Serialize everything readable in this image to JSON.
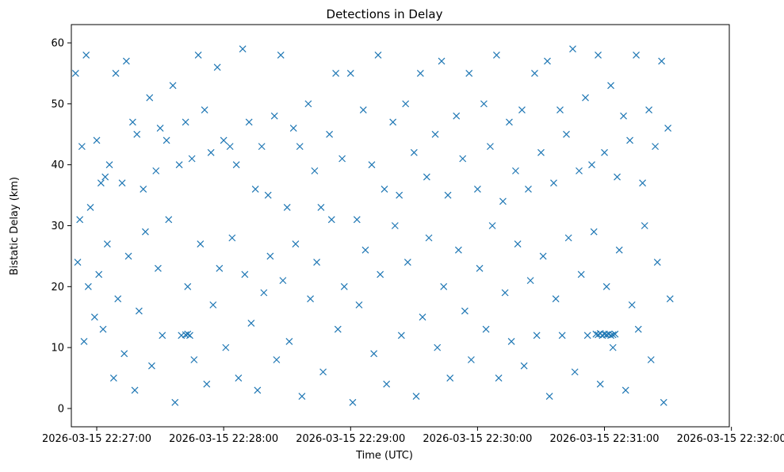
{
  "chart_data": {
    "type": "scatter",
    "title": "Detections in Delay",
    "xlabel": "Time (UTC)",
    "ylabel": "Bistatic Delay (km)",
    "x_time_range": [
      "2026-03-15 22:26:50",
      "2026-03-15 22:32:00"
    ],
    "xlim": [
      "2026-03-15 22:26:48",
      "2026-03-15 22:31:59"
    ],
    "ylim": [
      -3,
      63
    ],
    "x_ticks": [
      "2026-03-15 22:27:00",
      "2026-03-15 22:28:00",
      "2026-03-15 22:29:00",
      "2026-03-15 22:30:00",
      "2026-03-15 22:31:00",
      "2026-03-15 22:32:00"
    ],
    "y_ticks": [
      "0",
      "10",
      "20",
      "30",
      "40",
      "50",
      "60"
    ],
    "y_tick_values": [
      0,
      10,
      20,
      30,
      40,
      50,
      60
    ],
    "marker": "x",
    "grid": false,
    "legend": "none",
    "colors": {
      "marker": "#1f77b4",
      "axes": "#000000",
      "background": "#ffffff"
    },
    "series": [
      {
        "points": [
          [
            "2026-03-15 22:26:50",
            55
          ],
          [
            "2026-03-15 22:26:52",
            31
          ],
          [
            "2026-03-15 22:26:53",
            43
          ],
          [
            "2026-03-15 22:26:55",
            58
          ],
          [
            "2026-03-15 22:26:57",
            33
          ],
          [
            "2026-03-15 22:27:00",
            44
          ],
          [
            "2026-03-15 22:27:02",
            37
          ],
          [
            "2026-03-15 22:27:04",
            38
          ],
          [
            "2026-03-15 22:27:06",
            40
          ],
          [
            "2026-03-15 22:27:09",
            55
          ],
          [
            "2026-03-15 22:27:12",
            37
          ],
          [
            "2026-03-15 22:27:14",
            57
          ],
          [
            "2026-03-15 22:27:17",
            47
          ],
          [
            "2026-03-15 22:27:19",
            45
          ],
          [
            "2026-03-15 22:27:22",
            36
          ],
          [
            "2026-03-15 22:27:25",
            51
          ],
          [
            "2026-03-15 22:27:28",
            39
          ],
          [
            "2026-03-15 22:27:30",
            46
          ],
          [
            "2026-03-15 22:27:33",
            44
          ],
          [
            "2026-03-15 22:27:36",
            53
          ],
          [
            "2026-03-15 22:27:39",
            40
          ],
          [
            "2026-03-15 22:27:42",
            47
          ],
          [
            "2026-03-15 22:27:45",
            41
          ],
          [
            "2026-03-15 22:27:48",
            58
          ],
          [
            "2026-03-15 22:27:51",
            49
          ],
          [
            "2026-03-15 22:27:54",
            42
          ],
          [
            "2026-03-15 22:27:57",
            56
          ],
          [
            "2026-03-15 22:28:00",
            44
          ],
          [
            "2026-03-15 22:28:03",
            43
          ],
          [
            "2026-03-15 22:28:06",
            40
          ],
          [
            "2026-03-15 22:28:09",
            59
          ],
          [
            "2026-03-15 22:28:12",
            47
          ],
          [
            "2026-03-15 22:28:15",
            36
          ],
          [
            "2026-03-15 22:28:18",
            43
          ],
          [
            "2026-03-15 22:28:21",
            35
          ],
          [
            "2026-03-15 22:28:24",
            48
          ],
          [
            "2026-03-15 22:28:27",
            58
          ],
          [
            "2026-03-15 22:28:30",
            33
          ],
          [
            "2026-03-15 22:28:33",
            46
          ],
          [
            "2026-03-15 22:28:36",
            43
          ],
          [
            "2026-03-15 22:28:40",
            50
          ],
          [
            "2026-03-15 22:28:43",
            39
          ],
          [
            "2026-03-15 22:28:46",
            33
          ],
          [
            "2026-03-15 22:28:50",
            45
          ],
          [
            "2026-03-15 22:28:53",
            55
          ],
          [
            "2026-03-15 22:28:56",
            41
          ],
          [
            "2026-03-15 22:29:00",
            55
          ],
          [
            "2026-03-15 22:29:03",
            31
          ],
          [
            "2026-03-15 22:29:06",
            49
          ],
          [
            "2026-03-15 22:29:10",
            40
          ],
          [
            "2026-03-15 22:29:13",
            58
          ],
          [
            "2026-03-15 22:29:16",
            36
          ],
          [
            "2026-03-15 22:29:20",
            47
          ],
          [
            "2026-03-15 22:29:23",
            35
          ],
          [
            "2026-03-15 22:29:26",
            50
          ],
          [
            "2026-03-15 22:29:30",
            42
          ],
          [
            "2026-03-15 22:29:33",
            55
          ],
          [
            "2026-03-15 22:29:36",
            38
          ],
          [
            "2026-03-15 22:29:40",
            45
          ],
          [
            "2026-03-15 22:29:43",
            57
          ],
          [
            "2026-03-15 22:29:46",
            35
          ],
          [
            "2026-03-15 22:29:50",
            48
          ],
          [
            "2026-03-15 22:29:53",
            41
          ],
          [
            "2026-03-15 22:29:56",
            55
          ],
          [
            "2026-03-15 22:30:00",
            36
          ],
          [
            "2026-03-15 22:30:03",
            50
          ],
          [
            "2026-03-15 22:30:06",
            43
          ],
          [
            "2026-03-15 22:30:09",
            58
          ],
          [
            "2026-03-15 22:30:12",
            34
          ],
          [
            "2026-03-15 22:30:15",
            47
          ],
          [
            "2026-03-15 22:30:18",
            39
          ],
          [
            "2026-03-15 22:30:21",
            49
          ],
          [
            "2026-03-15 22:30:24",
            36
          ],
          [
            "2026-03-15 22:30:27",
            55
          ],
          [
            "2026-03-15 22:30:30",
            42
          ],
          [
            "2026-03-15 22:30:33",
            57
          ],
          [
            "2026-03-15 22:30:36",
            37
          ],
          [
            "2026-03-15 22:30:39",
            49
          ],
          [
            "2026-03-15 22:30:42",
            45
          ],
          [
            "2026-03-15 22:30:45",
            59
          ],
          [
            "2026-03-15 22:30:48",
            39
          ],
          [
            "2026-03-15 22:30:51",
            51
          ],
          [
            "2026-03-15 22:30:54",
            40
          ],
          [
            "2026-03-15 22:30:57",
            58
          ],
          [
            "2026-03-15 22:31:00",
            42
          ],
          [
            "2026-03-15 22:31:03",
            53
          ],
          [
            "2026-03-15 22:31:06",
            38
          ],
          [
            "2026-03-15 22:31:09",
            48
          ],
          [
            "2026-03-15 22:31:12",
            44
          ],
          [
            "2026-03-15 22:31:15",
            58
          ],
          [
            "2026-03-15 22:31:18",
            37
          ],
          [
            "2026-03-15 22:31:21",
            49
          ],
          [
            "2026-03-15 22:31:24",
            43
          ],
          [
            "2026-03-15 22:31:27",
            57
          ],
          [
            "2026-03-15 22:31:30",
            46
          ],
          [
            "2026-03-15 22:26:51",
            24
          ],
          [
            "2026-03-15 22:26:54",
            11
          ],
          [
            "2026-03-15 22:26:56",
            20
          ],
          [
            "2026-03-15 22:26:59",
            15
          ],
          [
            "2026-03-15 22:27:01",
            22
          ],
          [
            "2026-03-15 22:27:03",
            13
          ],
          [
            "2026-03-15 22:27:05",
            27
          ],
          [
            "2026-03-15 22:27:08",
            5
          ],
          [
            "2026-03-15 22:27:10",
            18
          ],
          [
            "2026-03-15 22:27:13",
            9
          ],
          [
            "2026-03-15 22:27:15",
            25
          ],
          [
            "2026-03-15 22:27:18",
            3
          ],
          [
            "2026-03-15 22:27:20",
            16
          ],
          [
            "2026-03-15 22:27:23",
            29
          ],
          [
            "2026-03-15 22:27:26",
            7
          ],
          [
            "2026-03-15 22:27:29",
            23
          ],
          [
            "2026-03-15 22:27:31",
            12
          ],
          [
            "2026-03-15 22:27:34",
            31
          ],
          [
            "2026-03-15 22:27:37",
            1
          ],
          [
            "2026-03-15 22:27:40",
            12
          ],
          [
            "2026-03-15 22:27:43",
            20
          ],
          [
            "2026-03-15 22:27:46",
            8
          ],
          [
            "2026-03-15 22:27:49",
            27
          ],
          [
            "2026-03-15 22:27:52",
            4
          ],
          [
            "2026-03-15 22:27:55",
            17
          ],
          [
            "2026-03-15 22:27:58",
            23
          ],
          [
            "2026-03-15 22:28:01",
            10
          ],
          [
            "2026-03-15 22:28:04",
            28
          ],
          [
            "2026-03-15 22:28:07",
            5
          ],
          [
            "2026-03-15 22:28:10",
            22
          ],
          [
            "2026-03-15 22:28:13",
            14
          ],
          [
            "2026-03-15 22:28:16",
            3
          ],
          [
            "2026-03-15 22:28:19",
            19
          ],
          [
            "2026-03-15 22:28:22",
            25
          ],
          [
            "2026-03-15 22:28:25",
            8
          ],
          [
            "2026-03-15 22:28:28",
            21
          ],
          [
            "2026-03-15 22:28:31",
            11
          ],
          [
            "2026-03-15 22:28:34",
            27
          ],
          [
            "2026-03-15 22:28:37",
            2
          ],
          [
            "2026-03-15 22:28:41",
            18
          ],
          [
            "2026-03-15 22:28:44",
            24
          ],
          [
            "2026-03-15 22:28:47",
            6
          ],
          [
            "2026-03-15 22:28:51",
            31
          ],
          [
            "2026-03-15 22:28:54",
            13
          ],
          [
            "2026-03-15 22:28:57",
            20
          ],
          [
            "2026-03-15 22:29:01",
            1
          ],
          [
            "2026-03-15 22:29:04",
            17
          ],
          [
            "2026-03-15 22:29:07",
            26
          ],
          [
            "2026-03-15 22:29:11",
            9
          ],
          [
            "2026-03-15 22:29:14",
            22
          ],
          [
            "2026-03-15 22:29:17",
            4
          ],
          [
            "2026-03-15 22:29:21",
            30
          ],
          [
            "2026-03-15 22:29:24",
            12
          ],
          [
            "2026-03-15 22:29:27",
            24
          ],
          [
            "2026-03-15 22:29:31",
            2
          ],
          [
            "2026-03-15 22:29:34",
            15
          ],
          [
            "2026-03-15 22:29:37",
            28
          ],
          [
            "2026-03-15 22:29:41",
            10
          ],
          [
            "2026-03-15 22:29:44",
            20
          ],
          [
            "2026-03-15 22:29:47",
            5
          ],
          [
            "2026-03-15 22:29:51",
            26
          ],
          [
            "2026-03-15 22:29:54",
            16
          ],
          [
            "2026-03-15 22:29:57",
            8
          ],
          [
            "2026-03-15 22:30:01",
            23
          ],
          [
            "2026-03-15 22:30:04",
            13
          ],
          [
            "2026-03-15 22:30:07",
            30
          ],
          [
            "2026-03-15 22:30:10",
            5
          ],
          [
            "2026-03-15 22:30:13",
            19
          ],
          [
            "2026-03-15 22:30:16",
            11
          ],
          [
            "2026-03-15 22:30:19",
            27
          ],
          [
            "2026-03-15 22:30:22",
            7
          ],
          [
            "2026-03-15 22:30:25",
            21
          ],
          [
            "2026-03-15 22:30:28",
            12
          ],
          [
            "2026-03-15 22:30:31",
            25
          ],
          [
            "2026-03-15 22:30:34",
            2
          ],
          [
            "2026-03-15 22:30:37",
            18
          ],
          [
            "2026-03-15 22:30:40",
            12
          ],
          [
            "2026-03-15 22:30:43",
            28
          ],
          [
            "2026-03-15 22:30:46",
            6
          ],
          [
            "2026-03-15 22:30:49",
            22
          ],
          [
            "2026-03-15 22:30:52",
            12
          ],
          [
            "2026-03-15 22:30:55",
            29
          ],
          [
            "2026-03-15 22:30:58",
            4
          ],
          [
            "2026-03-15 22:31:01",
            20
          ],
          [
            "2026-03-15 22:31:04",
            10
          ],
          [
            "2026-03-15 22:31:07",
            26
          ],
          [
            "2026-03-15 22:31:10",
            3
          ],
          [
            "2026-03-15 22:31:13",
            17
          ],
          [
            "2026-03-15 22:31:16",
            13
          ],
          [
            "2026-03-15 22:31:19",
            30
          ],
          [
            "2026-03-15 22:31:22",
            8
          ],
          [
            "2026-03-15 22:31:25",
            24
          ],
          [
            "2026-03-15 22:31:28",
            1
          ],
          [
            "2026-03-15 22:31:31",
            18
          ],
          [
            "2026-03-15 22:30:56",
            12.2
          ],
          [
            "2026-03-15 22:30:57",
            12.1
          ],
          [
            "2026-03-15 22:30:58",
            12.3
          ],
          [
            "2026-03-15 22:30:59",
            12.0
          ],
          [
            "2026-03-15 22:31:00",
            12.2
          ],
          [
            "2026-03-15 22:31:01",
            12.1
          ],
          [
            "2026-03-15 22:31:02",
            12.2
          ],
          [
            "2026-03-15 22:31:03",
            12.0
          ],
          [
            "2026-03-15 22:31:04",
            12.1
          ],
          [
            "2026-03-15 22:31:05",
            12.2
          ],
          [
            "2026-03-15 22:27:42",
            12.1
          ],
          [
            "2026-03-15 22:27:43",
            12.2
          ],
          [
            "2026-03-15 22:27:44",
            12.0
          ]
        ]
      }
    ]
  }
}
